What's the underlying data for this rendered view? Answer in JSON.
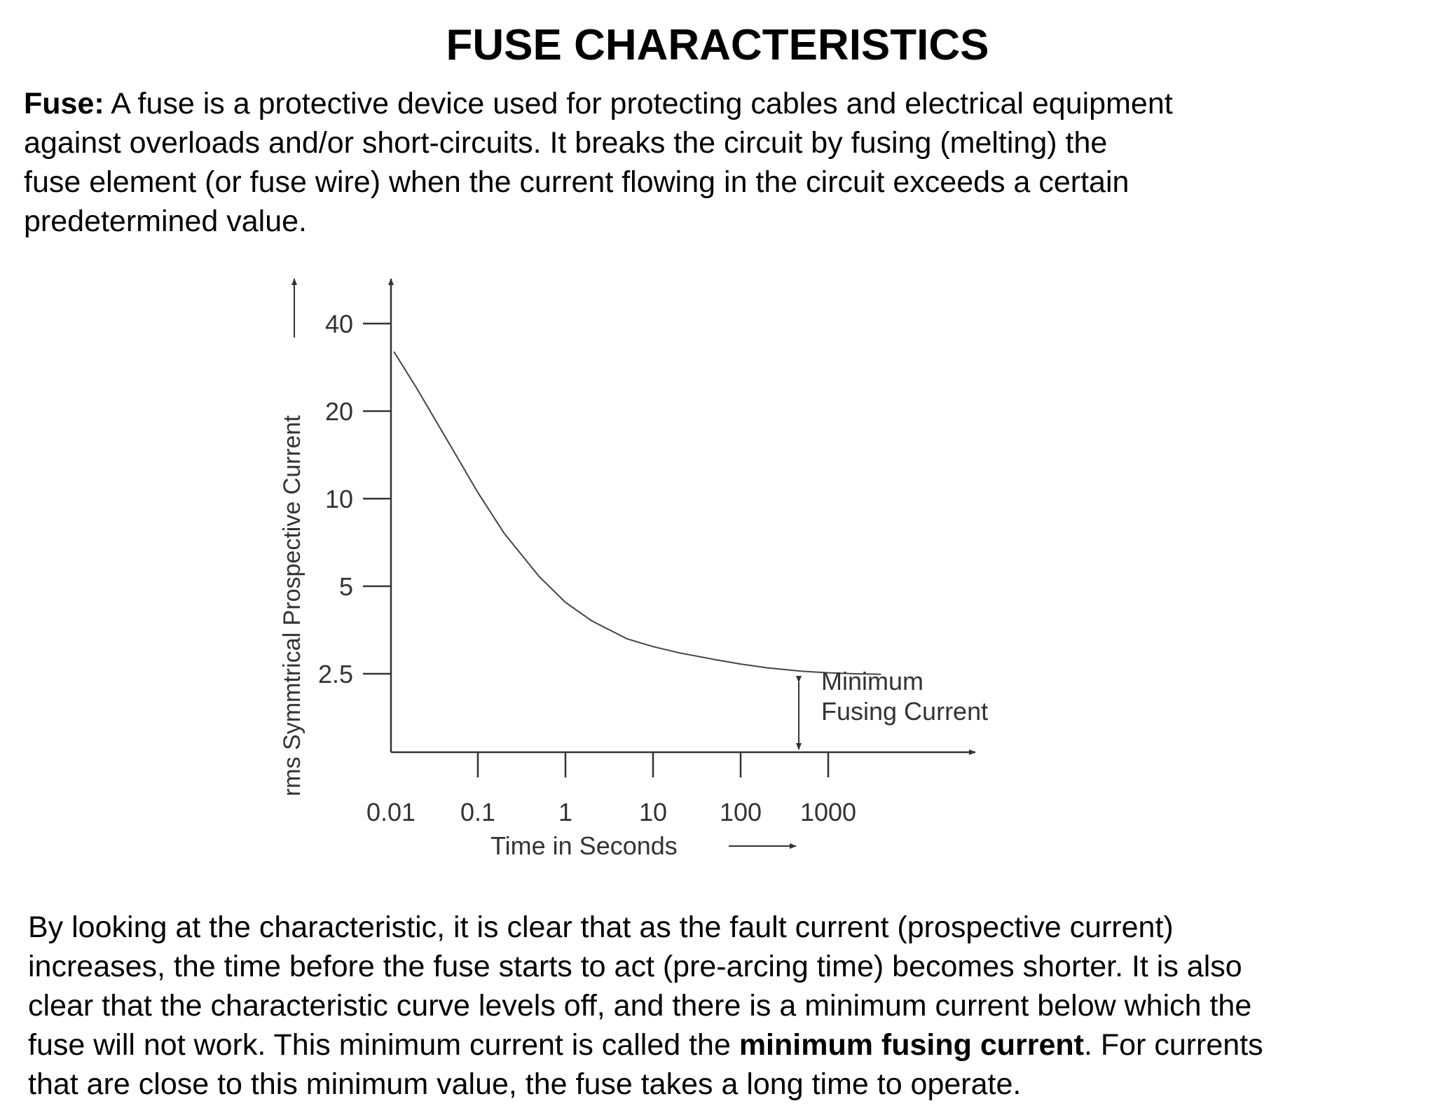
{
  "document": {
    "title": "FUSE CHARACTERISTICS",
    "intro": {
      "term": "Fuse:",
      "lines": [
        " A fuse is a protective device used for protecting cables and electrical equipment",
        "against overloads and/or short-circuits. It breaks the circuit by fusing (melting) the",
        "fuse element (or fuse wire) when the current flowing in the circuit exceeds a certain",
        "predetermined value."
      ]
    },
    "closing": {
      "lines": [
        "By looking at the characteristic, it is clear that as the fault current (prospective current)",
        "increases, the time before the fuse starts to act (pre-arcing time) becomes shorter. It is also",
        "clear that the characteristic curve levels off, and there is a minimum current below which the"
      ],
      "line4_before": "fuse will not work. This minimum current is called the ",
      "line4_bold": "minimum fusing current",
      "line4_after": ". For currents",
      "line5": "that are close to this minimum value, the fuse takes a long time to operate."
    }
  },
  "chart_data": {
    "type": "line",
    "xlabel": "Time in Seconds",
    "ylabel": "rms Symmtrical Prospective Current",
    "x_ticks": [
      "0.01",
      "0.1",
      "1",
      "10",
      "100",
      "1000"
    ],
    "y_ticks": [
      "2.5",
      "5",
      "10",
      "20",
      "40"
    ],
    "series": [
      {
        "x": [
          0.011,
          0.02,
          0.05,
          0.1,
          0.2,
          0.5,
          1,
          2,
          5,
          10,
          20,
          50,
          100,
          200,
          500,
          1000,
          2000,
          4000
        ],
        "y": [
          32,
          24,
          15,
          10.5,
          7.6,
          5.4,
          4.4,
          3.8,
          3.3,
          3.1,
          2.95,
          2.8,
          2.7,
          2.62,
          2.55,
          2.52,
          2.5,
          2.49
        ]
      }
    ],
    "annotations": [
      {
        "text_line1": "Minimum",
        "text_line2": "Fusing Current",
        "x": 500,
        "y": 2.55
      }
    ]
  }
}
